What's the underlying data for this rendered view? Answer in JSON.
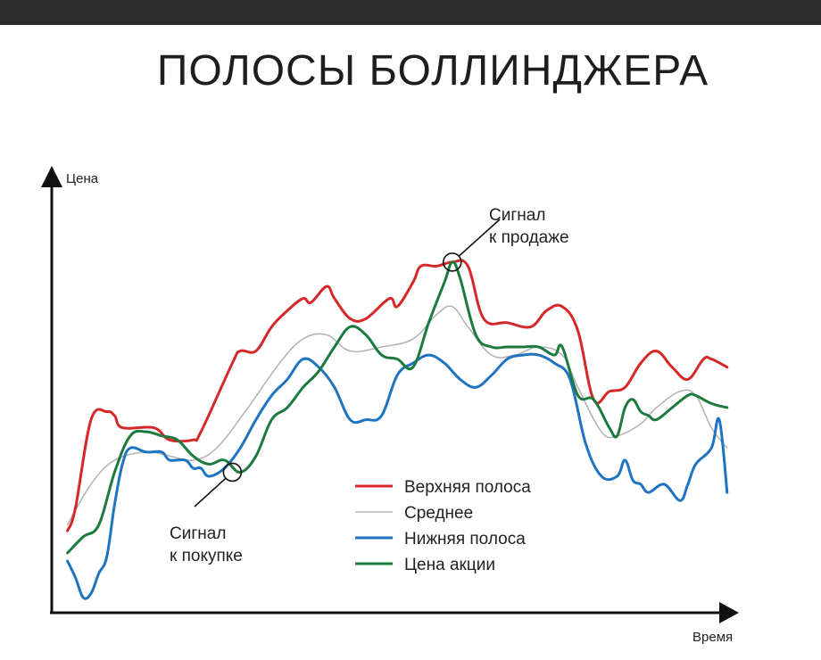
{
  "title": "ПОЛОСЫ БОЛЛИНДЖЕРА",
  "colors": {
    "upper": "#d62828",
    "middle": "#b5b5b5",
    "lower": "#1f74c2",
    "price": "#1c7a3e",
    "axis": "#111111"
  },
  "chart_data": {
    "type": "line",
    "title": "ПОЛОСЫ БОЛЛИНДЖЕРА",
    "xlabel": "Время",
    "ylabel": "Цена",
    "grid": false,
    "legend_position": "bottom-right",
    "series": [
      {
        "key": "upper",
        "name": "Верхняя полоса",
        "points": [
          [
            2,
            20.5
          ],
          [
            3,
            26
          ],
          [
            5,
            48
          ],
          [
            7,
            50
          ],
          [
            8,
            49
          ],
          [
            9,
            46
          ],
          [
            13,
            46
          ],
          [
            15,
            43
          ],
          [
            18,
            43
          ],
          [
            19,
            45
          ],
          [
            23,
            62
          ],
          [
            24,
            65
          ],
          [
            26,
            65
          ],
          [
            28,
            71
          ],
          [
            30,
            75
          ],
          [
            32,
            78
          ],
          [
            33,
            77
          ],
          [
            35,
            81
          ],
          [
            36,
            78
          ],
          [
            38,
            73
          ],
          [
            40,
            73
          ],
          [
            43,
            78
          ],
          [
            44,
            76
          ],
          [
            46,
            82
          ],
          [
            47,
            86
          ],
          [
            49,
            86
          ],
          [
            51,
            87
          ],
          [
            53,
            86
          ],
          [
            55,
            73
          ],
          [
            58,
            72
          ],
          [
            61,
            71
          ],
          [
            63,
            75
          ],
          [
            65,
            76
          ],
          [
            67,
            70
          ],
          [
            69,
            53
          ],
          [
            71,
            55
          ],
          [
            73,
            56
          ],
          [
            75,
            62
          ],
          [
            77,
            65
          ],
          [
            79,
            61
          ],
          [
            81,
            58
          ],
          [
            83,
            63
          ],
          [
            84,
            63
          ],
          [
            86,
            61
          ]
        ]
      },
      {
        "key": "middle",
        "name": "Среднее",
        "points": [
          [
            2,
            22
          ],
          [
            5,
            32
          ],
          [
            8,
            38
          ],
          [
            12,
            40
          ],
          [
            15,
            39
          ],
          [
            18,
            38
          ],
          [
            21,
            41
          ],
          [
            25,
            51
          ],
          [
            29,
            62
          ],
          [
            32,
            68
          ],
          [
            35,
            69
          ],
          [
            38,
            65
          ],
          [
            42,
            66
          ],
          [
            46,
            68
          ],
          [
            49,
            74
          ],
          [
            51,
            76
          ],
          [
            53,
            71
          ],
          [
            56,
            64
          ],
          [
            59,
            64
          ],
          [
            62,
            66
          ],
          [
            65,
            64
          ],
          [
            67,
            56
          ],
          [
            70,
            45
          ],
          [
            72,
            44
          ],
          [
            75,
            47
          ],
          [
            77,
            51
          ],
          [
            80,
            55
          ],
          [
            82,
            54
          ],
          [
            84,
            46
          ],
          [
            86,
            41
          ]
        ]
      },
      {
        "key": "lower",
        "name": "Нижняя полоса",
        "points": [
          [
            2,
            13
          ],
          [
            3,
            9
          ],
          [
            4,
            4
          ],
          [
            5,
            5
          ],
          [
            6,
            10
          ],
          [
            7,
            14
          ],
          [
            8,
            27
          ],
          [
            9,
            37
          ],
          [
            10,
            41
          ],
          [
            12,
            40
          ],
          [
            14,
            40
          ],
          [
            15,
            38
          ],
          [
            17,
            38
          ],
          [
            18,
            36
          ],
          [
            19,
            36
          ],
          [
            20,
            34
          ],
          [
            22,
            36
          ],
          [
            24,
            41
          ],
          [
            26,
            48
          ],
          [
            28,
            54
          ],
          [
            30,
            58
          ],
          [
            32,
            63
          ],
          [
            34,
            61
          ],
          [
            36,
            56
          ],
          [
            38,
            48
          ],
          [
            40,
            48
          ],
          [
            42,
            49
          ],
          [
            44,
            59
          ],
          [
            46,
            62
          ],
          [
            48,
            64
          ],
          [
            50,
            62
          ],
          [
            52,
            58
          ],
          [
            54,
            56
          ],
          [
            56,
            59
          ],
          [
            58,
            63
          ],
          [
            60,
            64
          ],
          [
            62,
            64
          ],
          [
            64,
            62
          ],
          [
            66,
            58
          ],
          [
            68,
            42
          ],
          [
            70,
            34
          ],
          [
            72,
            34
          ],
          [
            73,
            38
          ],
          [
            74,
            33
          ],
          [
            75,
            32
          ],
          [
            76,
            30
          ],
          [
            78,
            32
          ],
          [
            80,
            28
          ],
          [
            81,
            32
          ],
          [
            82,
            37
          ],
          [
            84,
            41
          ],
          [
            85,
            48
          ],
          [
            86,
            30
          ]
        ]
      },
      {
        "key": "price",
        "name": "Цена акции",
        "points": [
          [
            2,
            15
          ],
          [
            4,
            19
          ],
          [
            6,
            22
          ],
          [
            8,
            35
          ],
          [
            10,
            44
          ],
          [
            12,
            45
          ],
          [
            14,
            44
          ],
          [
            16,
            43
          ],
          [
            18,
            39
          ],
          [
            20,
            37
          ],
          [
            22,
            38
          ],
          [
            24,
            35
          ],
          [
            26,
            39
          ],
          [
            28,
            48
          ],
          [
            30,
            51
          ],
          [
            32,
            56
          ],
          [
            34,
            60
          ],
          [
            36,
            66
          ],
          [
            38,
            71
          ],
          [
            40,
            69
          ],
          [
            42,
            64
          ],
          [
            44,
            63
          ],
          [
            46,
            61
          ],
          [
            48,
            72
          ],
          [
            50,
            82
          ],
          [
            51,
            87
          ],
          [
            52,
            83
          ],
          [
            54,
            69
          ],
          [
            56,
            66
          ],
          [
            58,
            66
          ],
          [
            60,
            66
          ],
          [
            62,
            66
          ],
          [
            64,
            64
          ],
          [
            65,
            66
          ],
          [
            67,
            54
          ],
          [
            69,
            53
          ],
          [
            71,
            46
          ],
          [
            72,
            44
          ],
          [
            73,
            51
          ],
          [
            74,
            53
          ],
          [
            75,
            50
          ],
          [
            76,
            49
          ],
          [
            77,
            48
          ],
          [
            79,
            51
          ],
          [
            81,
            54
          ],
          [
            82,
            54
          ],
          [
            84,
            52
          ],
          [
            86,
            51
          ]
        ]
      }
    ],
    "annotations": [
      {
        "key": "sell",
        "text_lines": [
          "Сигнал",
          "к продаже"
        ],
        "x": 51,
        "y": 87
      },
      {
        "key": "buy",
        "text_lines": [
          "Сигнал",
          "к покупке"
        ],
        "x": 23,
        "y": 35
      }
    ]
  }
}
